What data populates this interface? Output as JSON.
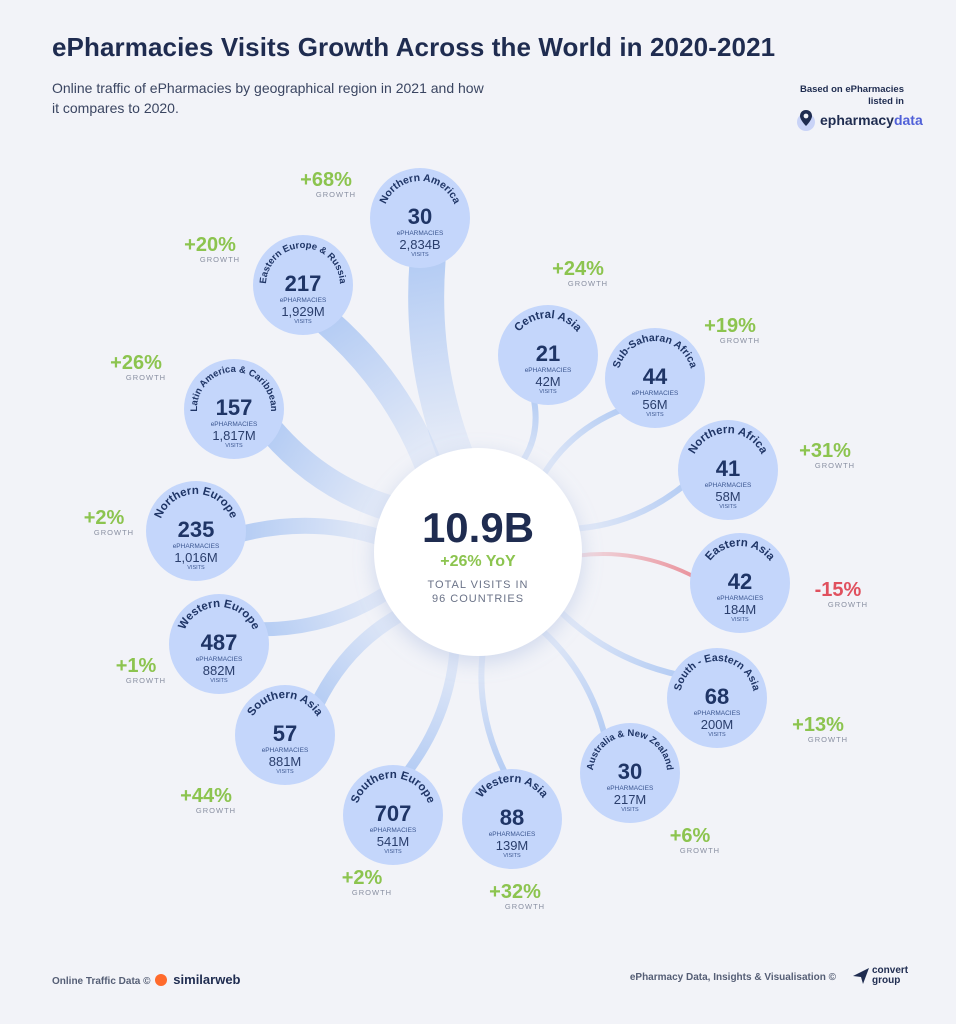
{
  "title": "ePharmacies Visits Growth Across the World in 2020-2021",
  "subtitle": "Online traffic of ePharmacies by geographical region in 2021 and how it compares to 2020.",
  "source": {
    "line1": "Based on ePharmacies",
    "line2": "listed in",
    "brand_main": "epharmacy",
    "brand_accent": "data"
  },
  "footer": {
    "left_text": "Online Traffic Data ©",
    "left_brand": "similarweb",
    "right_text": "ePharmacy Data, Insights & Visualisation ©",
    "right_brand_line1": "convert",
    "right_brand_line2": "group"
  },
  "colors": {
    "positive": "#8cc44f",
    "negative": "#e0505e",
    "bubble": "#c4d6fb",
    "number": "#1f3566",
    "ribbon": "#a9c5f3"
  },
  "chart_data": {
    "type": "radial-bubble",
    "center": {
      "value": "10.9B",
      "yoy": "+26% YoY",
      "label_line1": "TOTAL VISITS IN",
      "label_line2": "96 COUNTRIES"
    },
    "unit_epharmacies": "ePHARMACIES",
    "unit_visits": "VISITS",
    "growth_word": "GROWTH",
    "regions": [
      {
        "name": "Northern America",
        "epharmacies": 30,
        "visits": "2,834B",
        "growth": "+68%",
        "growth_value": 68
      },
      {
        "name": "Central Asia",
        "epharmacies": 21,
        "visits": "42M",
        "growth": "+24%",
        "growth_value": 24
      },
      {
        "name": "Sub-Saharan Africa",
        "epharmacies": 44,
        "visits": "56M",
        "growth": "+19%",
        "growth_value": 19
      },
      {
        "name": "Northern Africa",
        "epharmacies": 41,
        "visits": "58M",
        "growth": "+31%",
        "growth_value": 31
      },
      {
        "name": "Eastern Asia",
        "epharmacies": 42,
        "visits": "184M",
        "growth": "-15%",
        "growth_value": -15
      },
      {
        "name": "South - Eastern Asia",
        "epharmacies": 68,
        "visits": "200M",
        "growth": "+13%",
        "growth_value": 13
      },
      {
        "name": "Australia & New Zealand",
        "epharmacies": 30,
        "visits": "217M",
        "growth": "+6%",
        "growth_value": 6
      },
      {
        "name": "Western Asia",
        "epharmacies": 88,
        "visits": "139M",
        "growth": "+32%",
        "growth_value": 32
      },
      {
        "name": "Southern Europe",
        "epharmacies": 707,
        "visits": "541M",
        "growth": "+2%",
        "growth_value": 2
      },
      {
        "name": "Southern Asia",
        "epharmacies": 57,
        "visits": "881M",
        "growth": "+44%",
        "growth_value": 44
      },
      {
        "name": "Western Europe",
        "epharmacies": 487,
        "visits": "882M",
        "growth": "+1%",
        "growth_value": 1
      },
      {
        "name": "Northern Europe",
        "epharmacies": 235,
        "visits": "1,016M",
        "growth": "+2%",
        "growth_value": 2
      },
      {
        "name": "Latin America & Caribbean",
        "epharmacies": 157,
        "visits": "1,817M",
        "growth": "+26%",
        "growth_value": 26
      },
      {
        "name": "Eastern Europe & Russia",
        "epharmacies": 217,
        "visits": "1,929M",
        "growth": "+20%",
        "growth_value": 20
      }
    ]
  }
}
